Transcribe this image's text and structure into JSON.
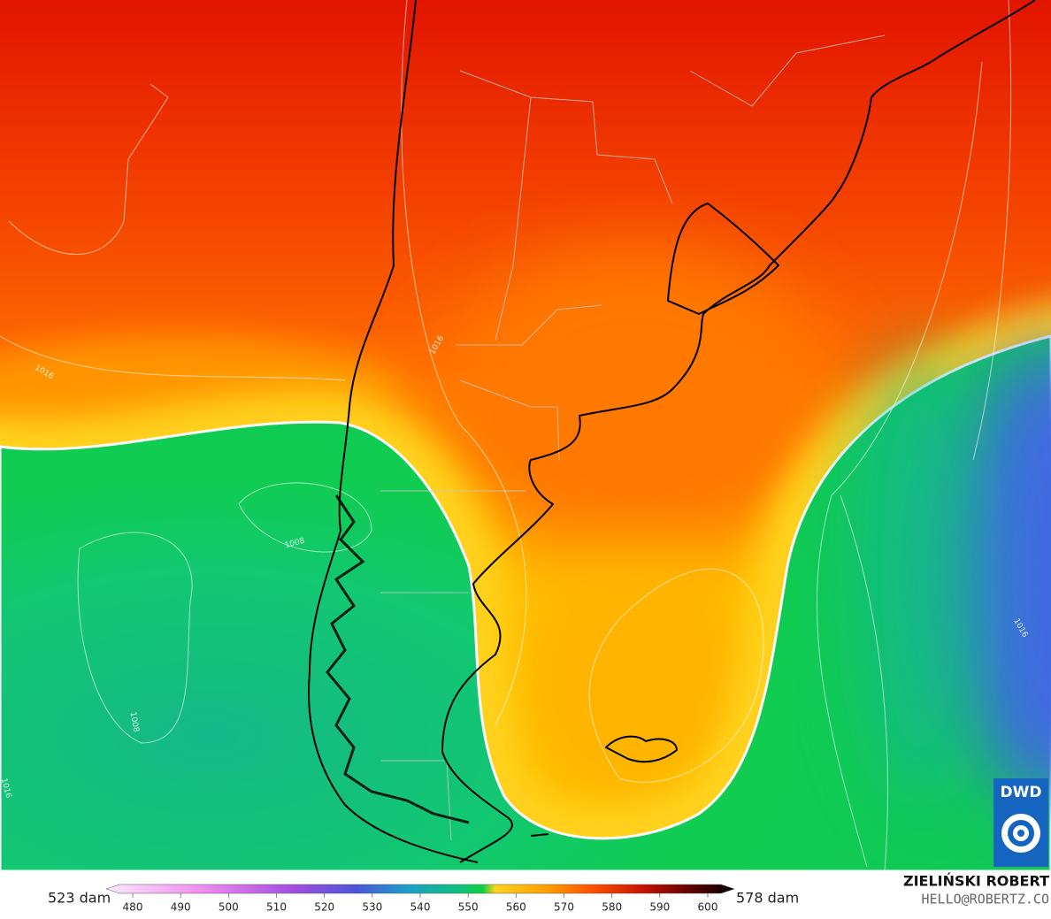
{
  "map": {
    "contour_labels": [
      "1016",
      "1008",
      "1008",
      "1016",
      "1016",
      "1016"
    ],
    "legend": {
      "min_label": "523 dam",
      "max_label": "578 dam",
      "ticks": [
        480,
        490,
        500,
        510,
        520,
        530,
        540,
        550,
        560,
        570,
        580,
        590,
        600
      ]
    },
    "logo": "DWD",
    "author": {
      "name": "ZIELIŃSKI ROBERT",
      "email": "HELLO@ROBERTZ.CO"
    }
  }
}
